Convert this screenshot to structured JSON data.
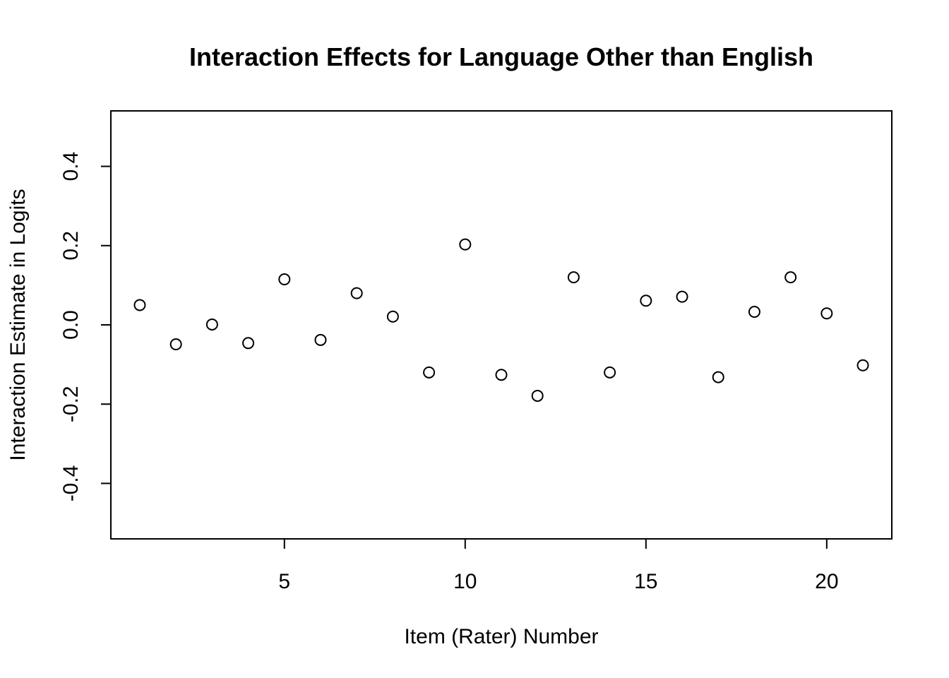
{
  "chart_data": {
    "type": "scatter",
    "title": "Interaction Effects for Language Other than English",
    "xlabel": "Item (Rater) Number",
    "ylabel": "Interaction Estimate in Logits",
    "xlim": [
      0.2,
      21.8
    ],
    "ylim": [
      -0.54,
      0.54
    ],
    "x_ticks": [
      5,
      10,
      15,
      20
    ],
    "x_tick_labels": [
      "5",
      "10",
      "15",
      "20"
    ],
    "y_ticks": [
      -0.4,
      -0.2,
      0.0,
      0.2,
      0.4
    ],
    "y_tick_labels": [
      "-0.4",
      "-0.2",
      "0.0",
      "0.2",
      "0.4"
    ],
    "grid": false,
    "marker": "open-circle",
    "color": "#000000",
    "series": [
      {
        "name": "Interaction estimate",
        "x": [
          1,
          2,
          3,
          4,
          5,
          6,
          7,
          8,
          9,
          10,
          11,
          12,
          13,
          14,
          15,
          16,
          17,
          18,
          19,
          20,
          21
        ],
        "y": [
          0.05,
          -0.049,
          0.001,
          -0.046,
          0.115,
          -0.038,
          0.08,
          0.021,
          -0.12,
          0.203,
          -0.126,
          -0.179,
          0.12,
          -0.12,
          0.061,
          0.071,
          -0.132,
          0.033,
          0.12,
          0.029,
          -0.102
        ]
      }
    ]
  }
}
